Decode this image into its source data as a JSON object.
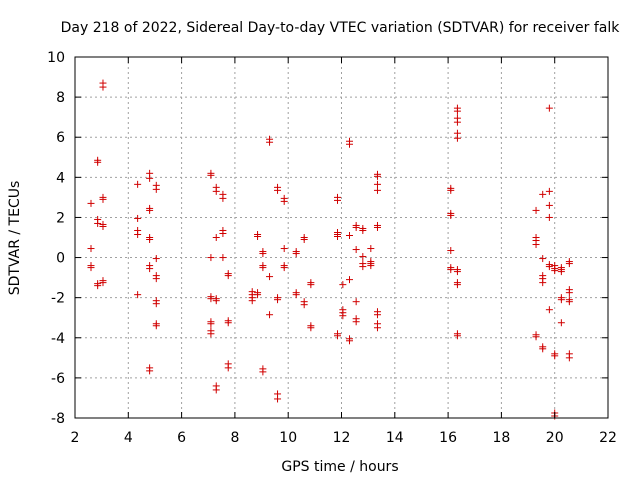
{
  "chart_data": {
    "type": "scatter",
    "title": "Day 218 of 2022, Sidereal Day-to-day VTEC variation (SDTVAR) for receiver falk",
    "xlabel": "GPS time / hours",
    "ylabel": "SDTVAR / TECUs",
    "xlim": [
      2,
      22
    ],
    "ylim": [
      -8,
      10
    ],
    "xticks": [
      2,
      4,
      6,
      8,
      10,
      12,
      14,
      16,
      18,
      20,
      22
    ],
    "yticks": [
      -8,
      -6,
      -4,
      -2,
      0,
      2,
      4,
      6,
      8,
      10
    ],
    "grid": true,
    "marker": "+",
    "marker_color": "#d00000",
    "series": [
      {
        "name": "SDTVAR",
        "points": [
          [
            2.6,
            2.7
          ],
          [
            2.6,
            0.45
          ],
          [
            2.6,
            -0.4
          ],
          [
            2.6,
            -0.5
          ],
          [
            2.85,
            4.85
          ],
          [
            2.85,
            4.75
          ],
          [
            2.85,
            1.9
          ],
          [
            2.85,
            1.7
          ],
          [
            2.85,
            -1.3
          ],
          [
            2.85,
            -1.4
          ],
          [
            3.05,
            8.7
          ],
          [
            3.05,
            8.5
          ],
          [
            3.05,
            3.0
          ],
          [
            3.05,
            2.9
          ],
          [
            3.05,
            1.65
          ],
          [
            3.05,
            1.55
          ],
          [
            3.05,
            -1.15
          ],
          [
            3.05,
            -1.25
          ],
          [
            4.35,
            3.65
          ],
          [
            4.35,
            1.95
          ],
          [
            4.35,
            1.35
          ],
          [
            4.35,
            1.15
          ],
          [
            4.35,
            -1.85
          ],
          [
            4.8,
            4.2
          ],
          [
            4.8,
            3.95
          ],
          [
            4.8,
            2.45
          ],
          [
            4.8,
            2.35
          ],
          [
            4.8,
            1.0
          ],
          [
            4.8,
            0.9
          ],
          [
            4.8,
            -0.4
          ],
          [
            4.8,
            -0.55
          ],
          [
            4.8,
            -5.5
          ],
          [
            4.8,
            -5.65
          ],
          [
            5.05,
            3.6
          ],
          [
            5.05,
            3.4
          ],
          [
            5.05,
            -0.05
          ],
          [
            5.05,
            -0.9
          ],
          [
            5.05,
            -1.05
          ],
          [
            5.05,
            -2.15
          ],
          [
            5.05,
            -2.3
          ],
          [
            5.05,
            -3.3
          ],
          [
            5.05,
            -3.4
          ],
          [
            7.1,
            4.2
          ],
          [
            7.1,
            4.1
          ],
          [
            7.1,
            0.0
          ],
          [
            7.1,
            -1.95
          ],
          [
            7.1,
            -2.05
          ],
          [
            7.1,
            -3.2
          ],
          [
            7.1,
            -3.3
          ],
          [
            7.1,
            -3.65
          ],
          [
            7.1,
            -3.8
          ],
          [
            7.3,
            3.5
          ],
          [
            7.3,
            3.3
          ],
          [
            7.3,
            1.0
          ],
          [
            7.3,
            -2.05
          ],
          [
            7.3,
            -2.15
          ],
          [
            7.3,
            -6.4
          ],
          [
            7.3,
            -6.6
          ],
          [
            7.55,
            3.15
          ],
          [
            7.55,
            2.95
          ],
          [
            7.55,
            1.35
          ],
          [
            7.55,
            1.2
          ],
          [
            7.55,
            0.0
          ],
          [
            7.75,
            -0.8
          ],
          [
            7.75,
            -0.9
          ],
          [
            7.75,
            -3.15
          ],
          [
            7.75,
            -3.25
          ],
          [
            7.75,
            -5.3
          ],
          [
            7.75,
            -5.5
          ],
          [
            8.65,
            -1.7
          ],
          [
            8.65,
            -1.85
          ],
          [
            8.65,
            -2.0
          ],
          [
            8.65,
            -2.15
          ],
          [
            8.85,
            1.15
          ],
          [
            8.85,
            1.05
          ],
          [
            8.85,
            -1.75
          ],
          [
            8.85,
            -1.85
          ],
          [
            9.05,
            0.3
          ],
          [
            9.05,
            0.2
          ],
          [
            9.05,
            -0.4
          ],
          [
            9.05,
            -0.5
          ],
          [
            9.05,
            -5.55
          ],
          [
            9.05,
            -5.7
          ],
          [
            9.3,
            5.9
          ],
          [
            9.3,
            5.75
          ],
          [
            9.3,
            -0.95
          ],
          [
            9.3,
            -2.85
          ],
          [
            9.6,
            3.5
          ],
          [
            9.6,
            3.35
          ],
          [
            9.6,
            -2.0
          ],
          [
            9.6,
            -2.1
          ],
          [
            9.6,
            -6.8
          ],
          [
            9.6,
            -7.05
          ],
          [
            9.85,
            2.95
          ],
          [
            9.85,
            2.8
          ],
          [
            9.85,
            0.45
          ],
          [
            9.85,
            -0.4
          ],
          [
            9.85,
            -0.5
          ],
          [
            10.3,
            0.3
          ],
          [
            10.3,
            0.2
          ],
          [
            10.3,
            -1.75
          ],
          [
            10.3,
            -1.85
          ],
          [
            10.6,
            1.0
          ],
          [
            10.6,
            0.9
          ],
          [
            10.6,
            -2.2
          ],
          [
            10.6,
            -2.35
          ],
          [
            10.85,
            -1.25
          ],
          [
            10.85,
            -1.35
          ],
          [
            10.85,
            -3.4
          ],
          [
            10.85,
            -3.5
          ],
          [
            11.85,
            3.0
          ],
          [
            11.85,
            2.85
          ],
          [
            11.85,
            1.25
          ],
          [
            11.85,
            1.15
          ],
          [
            11.85,
            1.05
          ],
          [
            11.85,
            -3.8
          ],
          [
            11.85,
            -3.9
          ],
          [
            12.05,
            -1.35
          ],
          [
            12.05,
            -2.6
          ],
          [
            12.05,
            -2.75
          ],
          [
            12.05,
            -2.9
          ],
          [
            12.3,
            5.8
          ],
          [
            12.3,
            5.65
          ],
          [
            12.3,
            1.1
          ],
          [
            12.3,
            -1.1
          ],
          [
            12.3,
            -4.05
          ],
          [
            12.3,
            -4.15
          ],
          [
            12.55,
            1.6
          ],
          [
            12.55,
            1.5
          ],
          [
            12.55,
            0.4
          ],
          [
            12.55,
            -2.2
          ],
          [
            12.55,
            -3.05
          ],
          [
            12.55,
            -3.2
          ],
          [
            12.8,
            1.45
          ],
          [
            12.8,
            1.35
          ],
          [
            12.8,
            0.05
          ],
          [
            12.8,
            -0.3
          ],
          [
            12.8,
            -0.45
          ],
          [
            13.1,
            0.45
          ],
          [
            13.1,
            -0.2
          ],
          [
            13.1,
            -0.3
          ],
          [
            13.1,
            -0.4
          ],
          [
            13.35,
            4.15
          ],
          [
            13.35,
            4.05
          ],
          [
            13.35,
            3.65
          ],
          [
            13.35,
            3.35
          ],
          [
            13.35,
            1.6
          ],
          [
            13.35,
            1.5
          ],
          [
            13.35,
            -2.7
          ],
          [
            13.35,
            -2.85
          ],
          [
            13.35,
            -3.3
          ],
          [
            13.35,
            -3.5
          ],
          [
            16.1,
            3.45
          ],
          [
            16.1,
            3.35
          ],
          [
            16.1,
            2.2
          ],
          [
            16.1,
            2.1
          ],
          [
            16.1,
            0.35
          ],
          [
            16.1,
            -0.5
          ],
          [
            16.1,
            -0.6
          ],
          [
            16.35,
            7.45
          ],
          [
            16.35,
            7.3
          ],
          [
            16.35,
            6.95
          ],
          [
            16.35,
            6.75
          ],
          [
            16.35,
            6.2
          ],
          [
            16.35,
            5.95
          ],
          [
            16.35,
            -0.6
          ],
          [
            16.35,
            -0.7
          ],
          [
            16.35,
            -1.25
          ],
          [
            16.35,
            -1.35
          ],
          [
            16.35,
            -3.8
          ],
          [
            16.35,
            -3.9
          ],
          [
            19.3,
            2.35
          ],
          [
            19.3,
            1.0
          ],
          [
            19.3,
            0.85
          ],
          [
            19.3,
            0.65
          ],
          [
            19.3,
            -3.85
          ],
          [
            19.3,
            -3.95
          ],
          [
            19.55,
            3.15
          ],
          [
            19.55,
            -0.05
          ],
          [
            19.55,
            -0.9
          ],
          [
            19.55,
            -1.05
          ],
          [
            19.55,
            -1.25
          ],
          [
            19.55,
            -4.45
          ],
          [
            19.55,
            -4.55
          ],
          [
            19.8,
            7.45
          ],
          [
            19.8,
            3.3
          ],
          [
            19.8,
            2.6
          ],
          [
            19.8,
            2.0
          ],
          [
            19.8,
            -0.35
          ],
          [
            19.8,
            -0.45
          ],
          [
            19.8,
            -2.6
          ],
          [
            20.0,
            -0.4
          ],
          [
            20.0,
            -0.55
          ],
          [
            20.0,
            -0.65
          ],
          [
            20.0,
            -4.8
          ],
          [
            20.0,
            -4.9
          ],
          [
            20.0,
            -7.75
          ],
          [
            20.0,
            -7.9
          ],
          [
            20.25,
            -0.5
          ],
          [
            20.25,
            -0.6
          ],
          [
            20.25,
            -0.7
          ],
          [
            20.25,
            -2.0
          ],
          [
            20.25,
            -2.1
          ],
          [
            20.25,
            -3.25
          ],
          [
            20.55,
            -0.2
          ],
          [
            20.55,
            -0.3
          ],
          [
            20.55,
            -1.6
          ],
          [
            20.55,
            -1.75
          ],
          [
            20.55,
            -2.1
          ],
          [
            20.55,
            -2.2
          ],
          [
            20.55,
            -4.8
          ],
          [
            20.55,
            -5.0
          ]
        ]
      }
    ]
  }
}
